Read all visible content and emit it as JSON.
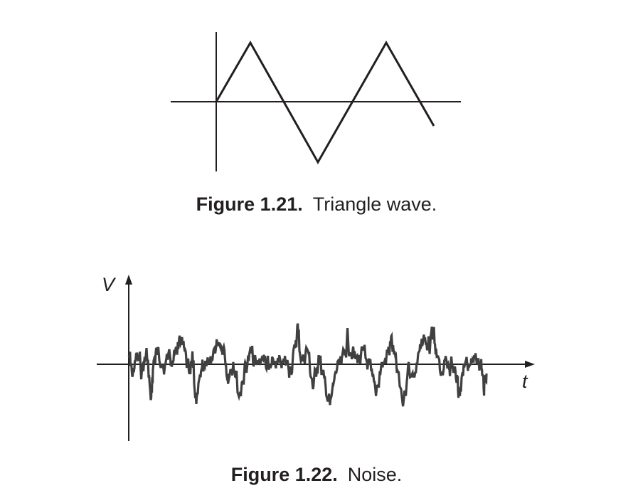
{
  "figures": [
    {
      "number": "Figure 1.21.",
      "caption": "Triangle wave."
    },
    {
      "number": "Figure 1.22.",
      "caption": "Noise.",
      "y_axis_label": "V",
      "x_axis_label": "t"
    }
  ],
  "colors": {
    "ink": "#231f20",
    "noise_trace": "#404040"
  },
  "icons": [
    "arrowhead-up-icon",
    "arrowhead-right-icon"
  ]
}
